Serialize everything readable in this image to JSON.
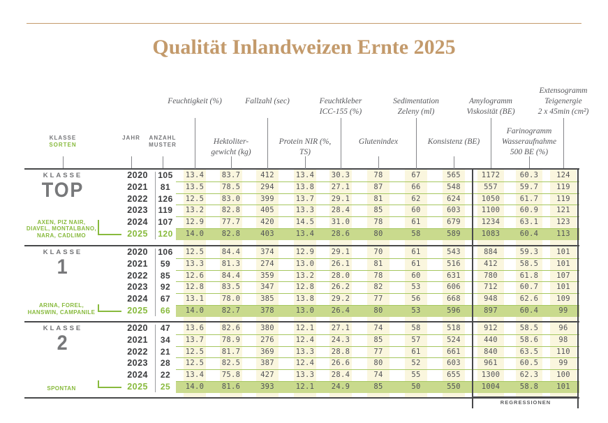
{
  "title": "Qualität Inlandweizen Ernte 2025",
  "colors": {
    "accent_tan": "#c39a6b",
    "accent_green": "#88ba3d",
    "row_highlight_green": "#c9da8d",
    "column_stripe_cream": "#faf6de",
    "grid_line_green": "#a5c75f",
    "line_dark_gray": "#47484a",
    "text_gray": "#55565a"
  },
  "header": {
    "klasse_label": "KLASSE",
    "sorten_label": "SORTEN",
    "jahr_label": "JAHR",
    "anzahl_lines": [
      "ANZAHL",
      "MUSTER"
    ],
    "columns": [
      {
        "lines": [
          "Feuchtigkeit (%)"
        ]
      },
      {
        "lines": [
          "Hektoliter-",
          "gewicht (kg)"
        ]
      },
      {
        "lines": [
          "Fallzahl (sec)"
        ]
      },
      {
        "lines": [
          "Protein NIR (%,",
          "TS)"
        ]
      },
      {
        "lines": [
          "Feuchtkleber",
          "ICC-155 (%)"
        ]
      },
      {
        "lines": [
          "Glutenindex"
        ]
      },
      {
        "lines": [
          "Sedimentation",
          "Zeleny (ml)"
        ]
      },
      {
        "lines": [
          "Konsistenz (BE)"
        ]
      },
      {
        "lines": [
          "Amylogramm",
          "Viskosität (BE)"
        ]
      },
      {
        "lines": [
          "Farinogramm",
          "Wasseraufnahme",
          "500 BE (%)"
        ]
      },
      {
        "lines": [
          "Extensogramm",
          "Teigenergie",
          "2 x 45min (cm²)"
        ]
      }
    ]
  },
  "blocks": [
    {
      "klasse_word": "KLASSE",
      "klasse_name": "TOP",
      "sorten_lines": [
        "AXEN, PIZ NAIR,",
        "DIAVEL, MONTALBANO,",
        "NARA, CADLIMO"
      ],
      "rows": [
        {
          "jahr": "2020",
          "anzahl": "105",
          "values": [
            "13.4",
            "83.7",
            "412",
            "13.4",
            "30.3",
            "78",
            "67",
            "565",
            "1172",
            "60.3",
            "124"
          ]
        },
        {
          "jahr": "2021",
          "anzahl": "81",
          "values": [
            "13.5",
            "78.5",
            "294",
            "13.8",
            "27.1",
            "87",
            "66",
            "548",
            "557",
            "59.7",
            "119"
          ]
        },
        {
          "jahr": "2022",
          "anzahl": "126",
          "values": [
            "12.5",
            "83.0",
            "399",
            "13.7",
            "29.1",
            "81",
            "62",
            "624",
            "1050",
            "61.7",
            "119"
          ]
        },
        {
          "jahr": "2023",
          "anzahl": "119",
          "values": [
            "13.2",
            "82.8",
            "405",
            "13.3",
            "28.4",
            "85",
            "60",
            "603",
            "1100",
            "60.9",
            "121"
          ]
        },
        {
          "jahr": "2024",
          "anzahl": "107",
          "values": [
            "12.9",
            "77.7",
            "420",
            "14.5",
            "31.0",
            "78",
            "61",
            "679",
            "1234",
            "63.1",
            "123"
          ]
        },
        {
          "jahr": "2025",
          "anzahl": "120",
          "values": [
            "14.0",
            "82.8",
            "403",
            "13.4",
            "28.6",
            "80",
            "58",
            "589",
            "1083",
            "60.4",
            "113"
          ]
        }
      ]
    },
    {
      "klasse_word": "KLASSE",
      "klasse_name": "1",
      "sorten_lines": [
        "ARINA, FOREL,",
        "HANSWIN, CAMPANILE"
      ],
      "rows": [
        {
          "jahr": "2020",
          "anzahl": "106",
          "values": [
            "12.5",
            "84.4",
            "374",
            "12.9",
            "29.1",
            "70",
            "61",
            "543",
            "884",
            "59.3",
            "101"
          ]
        },
        {
          "jahr": "2021",
          "anzahl": "59",
          "values": [
            "13.3",
            "81.3",
            "274",
            "13.0",
            "26.1",
            "81",
            "61",
            "516",
            "412",
            "58.5",
            "101"
          ]
        },
        {
          "jahr": "2022",
          "anzahl": "85",
          "values": [
            "12.6",
            "84.4",
            "359",
            "13.2",
            "28.0",
            "78",
            "60",
            "631",
            "780",
            "61.8",
            "107"
          ]
        },
        {
          "jahr": "2023",
          "anzahl": "92",
          "values": [
            "12.8",
            "83.5",
            "347",
            "12.8",
            "26.2",
            "82",
            "53",
            "606",
            "712",
            "60.7",
            "101"
          ]
        },
        {
          "jahr": "2024",
          "anzahl": "67",
          "values": [
            "13.1",
            "78.0",
            "385",
            "13.8",
            "29.2",
            "77",
            "56",
            "668",
            "948",
            "62.6",
            "109"
          ]
        },
        {
          "jahr": "2025",
          "anzahl": "66",
          "values": [
            "14.0",
            "82.7",
            "378",
            "13.0",
            "26.4",
            "80",
            "53",
            "596",
            "897",
            "60.4",
            "99"
          ]
        }
      ]
    },
    {
      "klasse_word": "KLASSE",
      "klasse_name": "2",
      "sorten_lines": [
        "SPONTAN"
      ],
      "rows": [
        {
          "jahr": "2020",
          "anzahl": "47",
          "values": [
            "13.6",
            "82.6",
            "380",
            "12.1",
            "27.1",
            "74",
            "58",
            "518",
            "912",
            "58.5",
            "96"
          ]
        },
        {
          "jahr": "2021",
          "anzahl": "34",
          "values": [
            "13.7",
            "78.9",
            "276",
            "12.4",
            "24.3",
            "85",
            "57",
            "524",
            "440",
            "58.6",
            "98"
          ]
        },
        {
          "jahr": "2022",
          "anzahl": "21",
          "values": [
            "12.5",
            "81.7",
            "369",
            "13.3",
            "28.8",
            "77",
            "61",
            "661",
            "840",
            "63.5",
            "110"
          ]
        },
        {
          "jahr": "2023",
          "anzahl": "28",
          "values": [
            "12.5",
            "82.5",
            "387",
            "12.4",
            "26.6",
            "80",
            "52",
            "603",
            "961",
            "60.5",
            "99"
          ]
        },
        {
          "jahr": "2024",
          "anzahl": "22",
          "values": [
            "13.4",
            "75.8",
            "427",
            "13.3",
            "28.4",
            "74",
            "55",
            "655",
            "1300",
            "62.3",
            "100"
          ]
        },
        {
          "jahr": "2025",
          "anzahl": "25",
          "values": [
            "14.0",
            "81.6",
            "393",
            "12.1",
            "24.9",
            "85",
            "50",
            "550",
            "1004",
            "58.8",
            "101"
          ]
        }
      ]
    }
  ],
  "footer": {
    "regressionen": "REGRESSIONEN"
  }
}
